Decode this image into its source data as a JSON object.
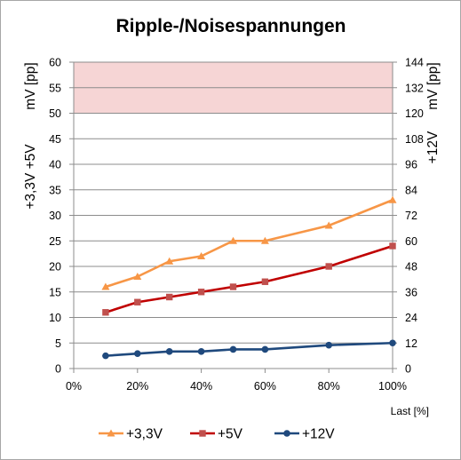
{
  "chart_data": {
    "type": "line",
    "title": "Ripple-/Noisespannungen",
    "xlabel": "Last [%]",
    "ylabel_left": [
      "+3,3V +5V",
      "mV [pp]"
    ],
    "ylabel_right": [
      "+12V",
      "mV [pp]"
    ],
    "x": [
      10,
      20,
      30,
      40,
      50,
      60,
      80,
      100
    ],
    "xlim": [
      0,
      100
    ],
    "xticks": [
      "0%",
      "20%",
      "40%",
      "60%",
      "80%",
      "100%"
    ],
    "ylim_left": [
      0,
      60
    ],
    "yticks_left": [
      "0",
      "5",
      "10",
      "15",
      "20",
      "25",
      "30",
      "35",
      "40",
      "45",
      "50",
      "55",
      "60"
    ],
    "ylim_right": [
      0,
      144
    ],
    "yticks_right": [
      "0",
      "12",
      "24",
      "36",
      "48",
      "60",
      "72",
      "84",
      "96",
      "108",
      "120",
      "132",
      "144"
    ],
    "limit_band_left": [
      50,
      60
    ],
    "limit_band_color": "#f6d5d5",
    "grid": "horizontal",
    "legend": "bottom",
    "series": [
      {
        "name": "+3,3V",
        "axis": "left",
        "color": "#f79646",
        "marker": "triangle",
        "values": [
          16,
          18,
          21,
          22,
          25,
          25,
          28,
          33
        ]
      },
      {
        "name": "+5V",
        "axis": "left",
        "color": "#c0504d",
        "line_color": "#c00000",
        "marker": "square",
        "values": [
          11,
          13,
          14,
          15,
          16,
          17,
          20,
          24
        ]
      },
      {
        "name": "+12V",
        "axis": "right",
        "color": "#1f497d",
        "marker": "circle",
        "values": [
          6,
          7,
          8,
          8,
          9,
          9,
          11,
          12
        ]
      }
    ]
  }
}
